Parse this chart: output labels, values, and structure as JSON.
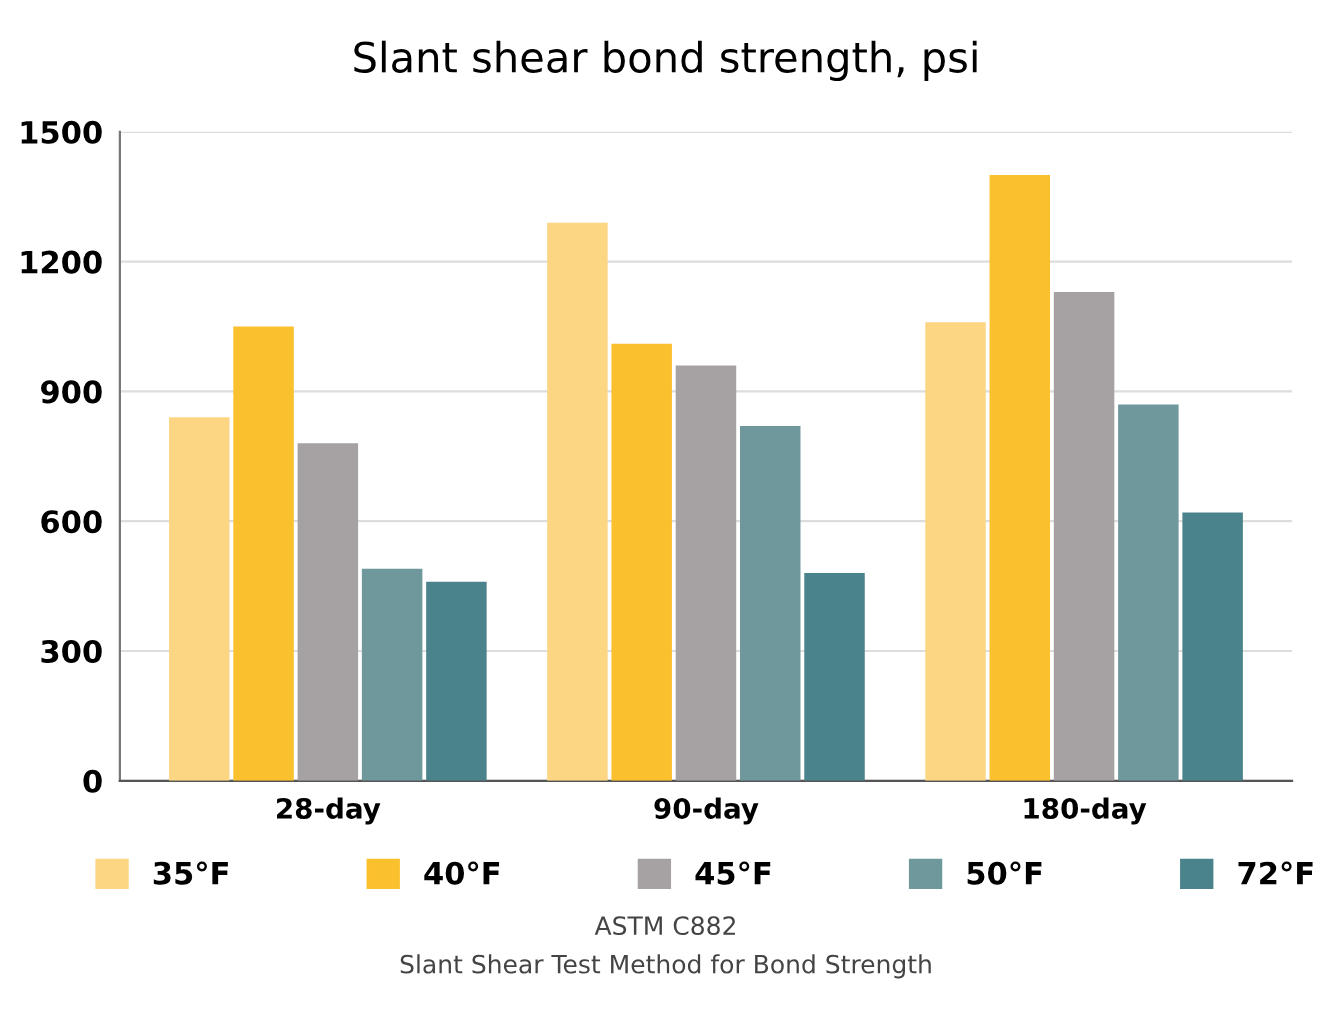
{
  "chart_data": {
    "type": "bar",
    "title": "Slant shear bond strength, psi",
    "categories": [
      "28-day",
      "90-day",
      "180-day"
    ],
    "series": [
      {
        "name": "35°F",
        "color": "#fcd683",
        "values": [
          840,
          1290,
          1060
        ]
      },
      {
        "name": "40°F",
        "color": "#fbc02d",
        "values": [
          1050,
          1010,
          1400
        ]
      },
      {
        "name": "45°F",
        "color": "#a6a2a3",
        "values": [
          780,
          960,
          1130
        ]
      },
      {
        "name": "50°F",
        "color": "#6f989d",
        "values": [
          490,
          820,
          870
        ]
      },
      {
        "name": "72°F",
        "color": "#4a838b",
        "values": [
          460,
          480,
          620
        ]
      }
    ],
    "ylim": [
      0,
      1500
    ],
    "yticks": [
      0,
      300,
      600,
      900,
      1200,
      1500
    ],
    "grid": "y",
    "legend": "bottom",
    "annotations": [
      "ASTM C882",
      "Slant Shear Test Method for Bond Strength"
    ]
  }
}
